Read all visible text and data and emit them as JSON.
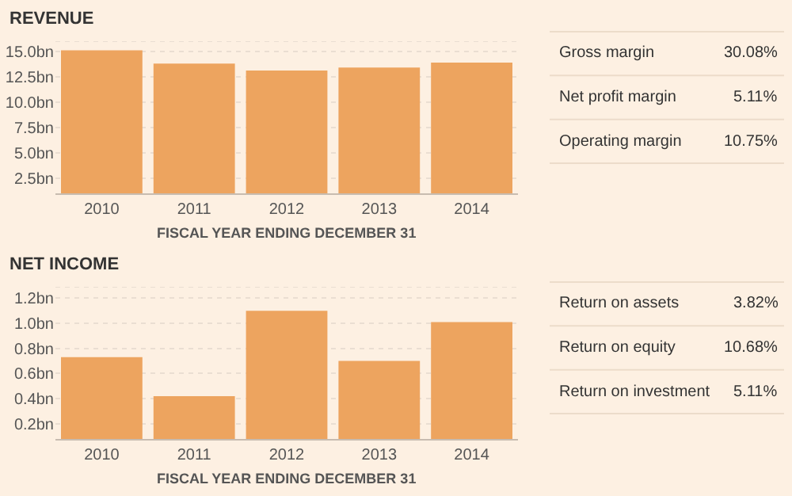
{
  "chart_data": [
    {
      "type": "bar",
      "title": "REVENUE",
      "xlabel": "FISCAL YEAR ENDING DECEMBER 31",
      "categories": [
        "2010",
        "2011",
        "2012",
        "2013",
        "2014"
      ],
      "values": [
        15.1,
        13.8,
        13.1,
        13.4,
        13.9
      ],
      "color": "#eda45f",
      "ylim": [
        1,
        16
      ],
      "yticks": [
        {
          "value": 2.5,
          "label": "2.5bn"
        },
        {
          "value": 5,
          "label": "5.0bn"
        },
        {
          "value": 7.5,
          "label": "7.5bn"
        },
        {
          "value": 10,
          "label": "10.0bn"
        },
        {
          "value": 12.5,
          "label": "12.5bn"
        },
        {
          "value": 15,
          "label": "15.0bn"
        }
      ],
      "grid": "y"
    },
    {
      "type": "other",
      "annotations": [
        "Gross margin",
        "30.08%",
        "Net profit margin",
        "5.11%",
        "Operating margin",
        "10.75%"
      ]
    },
    {
      "type": "bar",
      "title": "NET INCOME",
      "xlabel": "FISCAL YEAR ENDING DECEMBER 31",
      "categories": [
        "2010",
        "2011",
        "2012",
        "2013",
        "2014"
      ],
      "values": [
        0.73,
        0.42,
        1.1,
        0.7,
        1.01
      ],
      "color": "#eda45f",
      "ylim": [
        0.08,
        1.29
      ],
      "yticks": [
        {
          "value": 0.2,
          "label": "0.2bn"
        },
        {
          "value": 0.4,
          "label": "0.4bn"
        },
        {
          "value": 0.6,
          "label": "0.6bn"
        },
        {
          "value": 0.8,
          "label": "0.8bn"
        },
        {
          "value": 1.0,
          "label": "1.0bn"
        },
        {
          "value": 1.2,
          "label": "1.2bn"
        }
      ],
      "grid": "y"
    },
    {
      "type": "other",
      "annotations": [
        "Return on assets",
        "3.82%",
        "Return on equity",
        "10.68%",
        "Return on investment",
        "5.11%"
      ]
    }
  ]
}
